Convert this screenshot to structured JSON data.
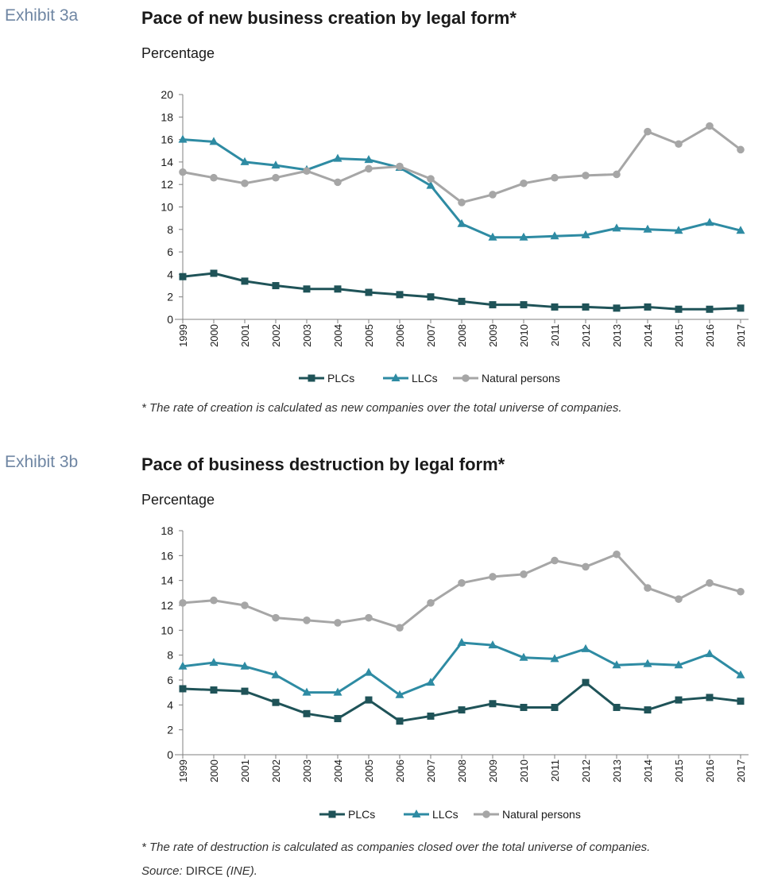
{
  "exhibits": [
    {
      "label": "Exhibit 3a",
      "title": "Pace of new business creation by legal form*",
      "subtitle": "Percentage",
      "note": "* The rate of creation is calculated as new companies over the total universe of companies.",
      "source_prefix": "",
      "source_name": "",
      "source_suffix": ""
    },
    {
      "label": "Exhibit 3b",
      "title": "Pace of business destruction by legal form*",
      "subtitle": "Percentage",
      "note": "* The rate of destruction is calculated as companies closed over the total universe of companies.",
      "source_prefix": "Source: ",
      "source_name": "DIRCE",
      "source_suffix": " (INE)."
    }
  ],
  "chart_data": [
    {
      "type": "line",
      "x": [
        "1999",
        "2000",
        "2001",
        "2002",
        "2003",
        "2004",
        "2005",
        "2006",
        "2007",
        "2008",
        "2009",
        "2010",
        "2011",
        "2012",
        "2013",
        "2014",
        "2015",
        "2016",
        "2017"
      ],
      "ylim": [
        0,
        20
      ],
      "yticks": [
        0,
        2,
        4,
        6,
        8,
        10,
        12,
        14,
        16,
        18,
        20
      ],
      "legend_position": "bottom",
      "grid": false,
      "series": [
        {
          "name": "PLCs",
          "color": "#1f5358",
          "marker": "square",
          "values": [
            3.8,
            4.1,
            3.4,
            3.0,
            2.7,
            2.7,
            2.4,
            2.2,
            2.0,
            1.6,
            1.3,
            1.3,
            1.1,
            1.1,
            1.0,
            1.1,
            0.9,
            0.9,
            1.0
          ]
        },
        {
          "name": "LLCs",
          "color": "#2e8ba3",
          "marker": "triangle",
          "values": [
            16.0,
            15.8,
            14.0,
            13.7,
            13.3,
            14.3,
            14.2,
            13.5,
            11.9,
            8.5,
            7.3,
            7.3,
            7.4,
            7.5,
            8.1,
            8.0,
            7.9,
            8.6,
            7.9
          ]
        },
        {
          "name": "Natural persons",
          "color": "#a6a6a6",
          "marker": "circle",
          "values": [
            13.1,
            12.6,
            12.1,
            12.6,
            13.2,
            12.2,
            13.4,
            13.6,
            12.5,
            10.4,
            11.1,
            12.1,
            12.6,
            12.8,
            12.9,
            16.7,
            15.6,
            17.2,
            15.1
          ]
        }
      ]
    },
    {
      "type": "line",
      "x": [
        "1999",
        "2000",
        "2001",
        "2002",
        "2003",
        "2004",
        "2005",
        "2006",
        "2007",
        "2008",
        "2009",
        "2010",
        "2011",
        "2012",
        "2013",
        "2014",
        "2015",
        "2016",
        "2017"
      ],
      "ylim": [
        0,
        18
      ],
      "yticks": [
        0,
        2,
        4,
        6,
        8,
        10,
        12,
        14,
        16,
        18
      ],
      "legend_position": "bottom",
      "grid": false,
      "series": [
        {
          "name": "PLCs",
          "color": "#1f5358",
          "marker": "square",
          "values": [
            5.3,
            5.2,
            5.1,
            4.2,
            3.3,
            2.9,
            4.4,
            2.7,
            3.1,
            3.6,
            4.1,
            3.8,
            3.8,
            5.8,
            3.8,
            3.6,
            4.4,
            4.6,
            4.3
          ]
        },
        {
          "name": "LLCs",
          "color": "#2e8ba3",
          "marker": "triangle",
          "values": [
            7.1,
            7.4,
            7.1,
            6.4,
            5.0,
            5.0,
            6.6,
            4.8,
            5.8,
            9.0,
            8.8,
            7.8,
            7.7,
            8.5,
            7.2,
            7.3,
            7.2,
            8.1,
            6.4
          ]
        },
        {
          "name": "Natural persons",
          "color": "#a6a6a6",
          "marker": "circle",
          "values": [
            12.2,
            12.4,
            12.0,
            11.0,
            10.8,
            10.6,
            11.0,
            10.2,
            12.2,
            13.8,
            14.3,
            14.5,
            15.6,
            15.1,
            16.1,
            13.4,
            12.5,
            13.8,
            13.1
          ]
        }
      ]
    }
  ]
}
